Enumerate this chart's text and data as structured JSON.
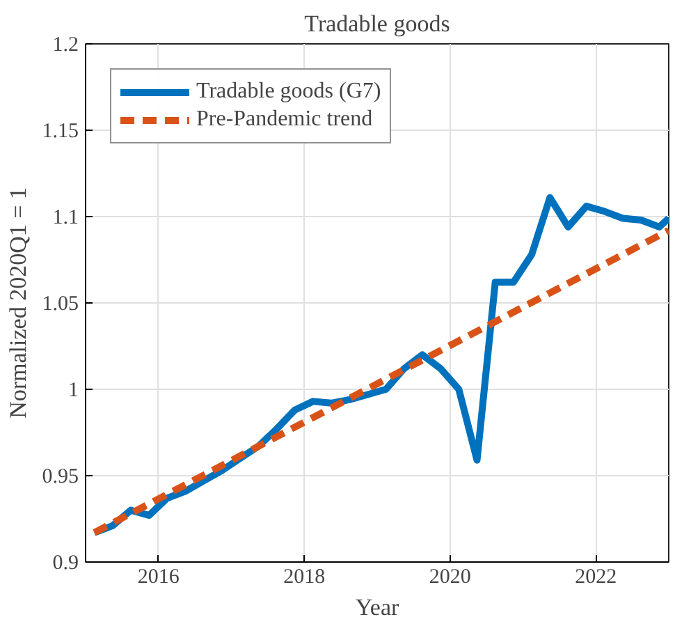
{
  "chart_data": {
    "type": "line",
    "title": "Tradable goods",
    "xlabel": "Year",
    "ylabel": "Normalized 2020Q1 = 1",
    "xlim": [
      2015,
      2023
    ],
    "xticks": [
      2016,
      2018,
      2020,
      2022
    ],
    "ylim": [
      0.9,
      1.2
    ],
    "yticks": [
      0.9,
      0.95,
      1,
      1.05,
      1.1,
      1.15,
      1.2
    ],
    "grid": true,
    "legend": "top left",
    "series": [
      {
        "name": "Tradable goods (G7)",
        "color": "#0072bd",
        "line_style": "solid",
        "x": [
          2015.12,
          2015.37,
          2015.62,
          2015.87,
          2016.12,
          2016.37,
          2016.62,
          2016.87,
          2017.12,
          2017.37,
          2017.62,
          2017.87,
          2018.12,
          2018.37,
          2018.62,
          2018.87,
          2019.12,
          2019.37,
          2019.62,
          2019.87,
          2020.12,
          2020.37,
          2020.62,
          2020.87,
          2021.12,
          2021.37,
          2021.62,
          2021.87,
          2022.12,
          2022.37,
          2022.62,
          2022.87,
          2023.0
        ],
        "values": [
          0.917,
          0.921,
          0.93,
          0.927,
          0.937,
          0.941,
          0.947,
          0.953,
          0.96,
          0.967,
          0.977,
          0.988,
          0.993,
          0.992,
          0.994,
          0.997,
          1.0,
          1.012,
          1.02,
          1.012,
          1.0,
          0.959,
          1.062,
          1.062,
          1.078,
          1.111,
          1.094,
          1.106,
          1.103,
          1.099,
          1.098,
          1.094,
          1.099
        ]
      },
      {
        "name": "Pre-Pandemic trend",
        "color": "#d95319",
        "line_style": "dashed",
        "x": [
          2015.12,
          2023.0
        ],
        "values": [
          0.917,
          1.092
        ]
      }
    ]
  }
}
